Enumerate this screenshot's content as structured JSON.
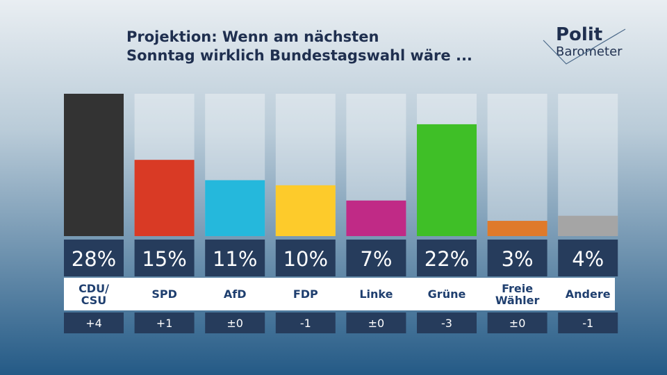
{
  "logo": {
    "line1": "Polit",
    "line2": "Barometer"
  },
  "chart_data": {
    "type": "bar",
    "title": "Projektion: Wenn am nächsten\nSonntag wirklich Bundestagswahl wäre ...",
    "categories": [
      "CDU/\nCSU",
      "SPD",
      "AfD",
      "FDP",
      "Linke",
      "Grüne",
      "Freie\nWähler",
      "Andere"
    ],
    "values": [
      28,
      15,
      11,
      10,
      7,
      22,
      3,
      4
    ],
    "value_labels": [
      "28%",
      "15%",
      "11%",
      "10%",
      "7%",
      "22%",
      "3%",
      "4%"
    ],
    "colors": [
      "#333333",
      "#d93a25",
      "#25b8dc",
      "#fdcb2b",
      "#c02a86",
      "#3fbf27",
      "#df7a2a",
      "#a5a5a5"
    ],
    "changes": [
      "+4",
      "+1",
      "±0",
      "-1",
      "±0",
      "-3",
      "±0",
      "-1"
    ]
  }
}
